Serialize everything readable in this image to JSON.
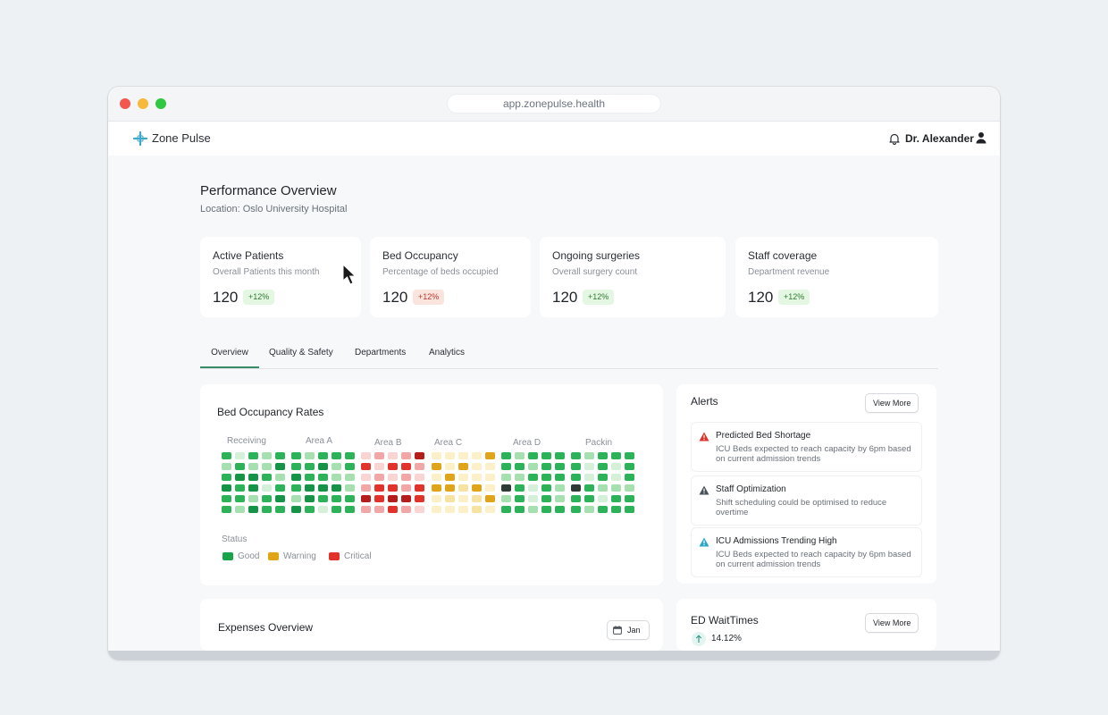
{
  "browser": {
    "url": "app.zonepulse.health"
  },
  "header": {
    "brand": "Zone Pulse",
    "user": "Dr. Alexander",
    "icons": [
      "plus-cross-logo-icon",
      "bell-icon",
      "user-icon"
    ]
  },
  "page": {
    "title": "Performance Overview",
    "location": "Location: Oslo University Hospital"
  },
  "kpis": [
    {
      "title": "Active Patients",
      "subtitle": "Overall Patients this month",
      "value": "120",
      "change": "+12%",
      "trend": "good"
    },
    {
      "title": "Bed Occupancy",
      "subtitle": "Percentage of beds occupied",
      "value": "120",
      "change": "+12%",
      "trend": "bad"
    },
    {
      "title": "Ongoing surgeries",
      "subtitle": "Overall surgery count",
      "value": "120",
      "change": "+12%",
      "trend": "good"
    },
    {
      "title": "Staff coverage",
      "subtitle": "Department revenue",
      "value": "120",
      "change": "+12%",
      "trend": "good"
    }
  ],
  "tabs": [
    {
      "label": "Overview",
      "active": true
    },
    {
      "label": "Quality & Safety",
      "active": false
    },
    {
      "label": "Departments",
      "active": false
    },
    {
      "label": "Analytics",
      "active": false
    }
  ],
  "occupancy": {
    "title": "Bed Occupancy Rates",
    "areas": [
      {
        "label": "Receiving",
        "palette": "green",
        "cells": [
          [
            2,
            0,
            2,
            1,
            2
          ],
          [
            1,
            2,
            1,
            1,
            3
          ],
          [
            2,
            3,
            3,
            2,
            1
          ],
          [
            3,
            2,
            3,
            0,
            2
          ],
          [
            2,
            2,
            1,
            2,
            3
          ],
          [
            2,
            1,
            3,
            2,
            2
          ]
        ]
      },
      {
        "label": "Area A",
        "palette": "green",
        "cells": [
          [
            2,
            1,
            2,
            2,
            2
          ],
          [
            2,
            2,
            3,
            1,
            2
          ],
          [
            3,
            2,
            2,
            1,
            1
          ],
          [
            2,
            3,
            3,
            3,
            1
          ],
          [
            1,
            3,
            2,
            2,
            2
          ],
          [
            3,
            2,
            0,
            2,
            2
          ]
        ]
      },
      {
        "label": "Area B",
        "palette": "red",
        "cells": [
          [
            0,
            1,
            0,
            1,
            3
          ],
          [
            2,
            0,
            2,
            2,
            1
          ],
          [
            0,
            1,
            0,
            1,
            0
          ],
          [
            1,
            2,
            2,
            1,
            2
          ],
          [
            3,
            2,
            3,
            3,
            2
          ],
          [
            1,
            1,
            2,
            1,
            0
          ]
        ]
      },
      {
        "label": "Area C",
        "palette": "yellow",
        "cells": [
          [
            0,
            0,
            0,
            0,
            2
          ],
          [
            2,
            0,
            2,
            0,
            0
          ],
          [
            0,
            2,
            0,
            0,
            0
          ],
          [
            2,
            2,
            1,
            2,
            0
          ],
          [
            0,
            1,
            0,
            1,
            2
          ],
          [
            0,
            0,
            0,
            1,
            0
          ]
        ]
      },
      {
        "label": "Area D",
        "palette": "green",
        "cells": [
          [
            2,
            1,
            2,
            2,
            2
          ],
          [
            2,
            2,
            1,
            2,
            2
          ],
          [
            1,
            1,
            2,
            2,
            2
          ],
          [
            4,
            2,
            0,
            2,
            1
          ],
          [
            1,
            2,
            0,
            2,
            1
          ],
          [
            2,
            2,
            1,
            2,
            2
          ]
        ]
      },
      {
        "label": "Packin",
        "palette": "green",
        "cells": [
          [
            2,
            1,
            2,
            2,
            2
          ],
          [
            2,
            0,
            2,
            0,
            2
          ],
          [
            2,
            0,
            2,
            0,
            2
          ],
          [
            4,
            2,
            1,
            1,
            1
          ],
          [
            2,
            2,
            0,
            2,
            2
          ],
          [
            2,
            1,
            2,
            2,
            2
          ]
        ]
      }
    ],
    "palettes": {
      "green": [
        "#d5f0d9",
        "#a7e0b0",
        "#2cb35a",
        "#159447",
        "#2d3a36"
      ],
      "red": [
        "#f8d4d3",
        "#f1a7a6",
        "#e2322c",
        "#b71c1c",
        "#2d3a36"
      ],
      "yellow": [
        "#fbf0c7",
        "#f6e3a2",
        "#e0a419",
        "#c98b0e",
        "#2d3a36"
      ]
    },
    "legend": {
      "title": "Status",
      "items": [
        {
          "label": "Good",
          "color": "#16a34a"
        },
        {
          "label": "Warning",
          "color": "#e0a419"
        },
        {
          "label": "Critical",
          "color": "#e2322c"
        }
      ]
    }
  },
  "alerts": {
    "title": "Alerts",
    "view_more": "View More",
    "items": [
      {
        "title": "Predicted Bed Shortage",
        "body": "ICU Beds expected to reach capacity by 6pm based on current admission trends",
        "icon": "warning-triangle-icon",
        "color": "#e2322c"
      },
      {
        "title": "Staff Optimization",
        "body": "Shift scheduling could be optimised to reduce overtime",
        "icon": "warning-triangle-icon",
        "color": "#4a5058"
      },
      {
        "title": "ICU Admissions Trending High",
        "body": "ICU Beds expected to reach capacity by 6pm based on current admission trends",
        "icon": "warning-triangle-icon",
        "color": "#2aa7c4"
      }
    ]
  },
  "expenses": {
    "title": "Expenses Overview",
    "month": "Jan",
    "icon": "calendar-icon"
  },
  "ed": {
    "title": "ED WaitTimes",
    "view_more": "View More",
    "value": "14.12%",
    "icon": "arrow-up-icon"
  }
}
